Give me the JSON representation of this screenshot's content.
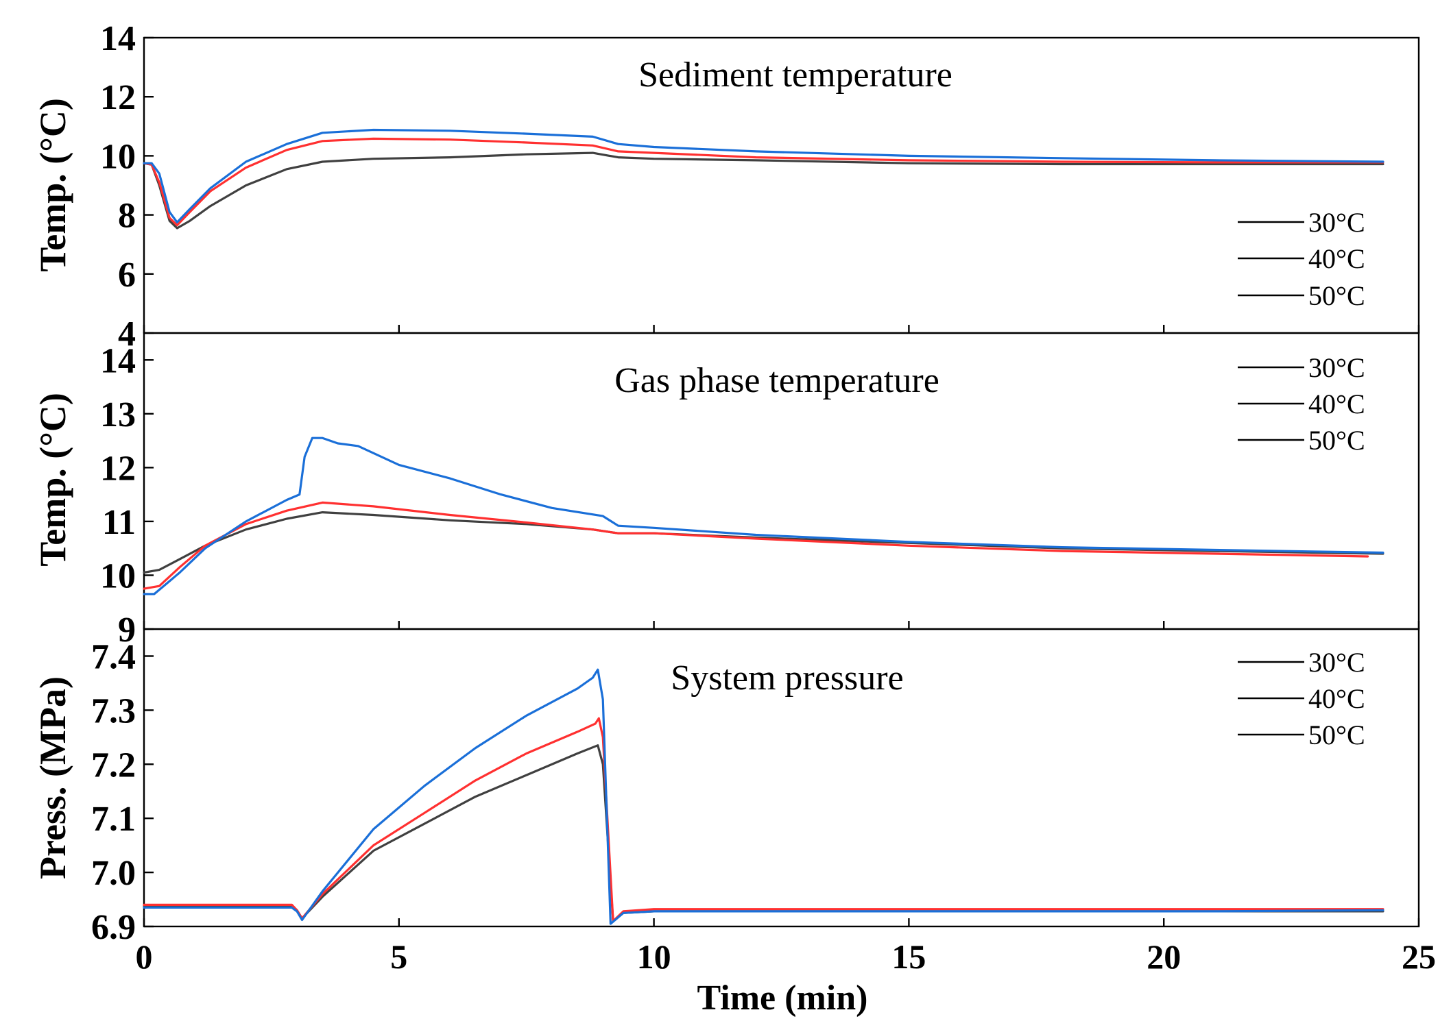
{
  "chart_data": [
    {
      "type": "line",
      "title": "Sediment temperature",
      "xlabel": "",
      "ylabel": "Temp. (°C)",
      "xlim": [
        0,
        25
      ],
      "ylim": [
        4,
        14
      ],
      "yticks": [
        "4",
        "6",
        "8",
        "10",
        "12",
        "14"
      ],
      "legend_position": "bottom-right",
      "series": [
        {
          "name": "30°C",
          "color": "#404040",
          "x": [
            0,
            0.15,
            0.3,
            0.5,
            0.65,
            0.9,
            1.3,
            2.0,
            2.8,
            3.5,
            4.5,
            6.0,
            7.5,
            8.8,
            9.3,
            10,
            12,
            15,
            18,
            21,
            24.3
          ],
          "y": [
            9.75,
            9.7,
            9.0,
            7.8,
            7.55,
            7.8,
            8.3,
            9.0,
            9.55,
            9.8,
            9.9,
            9.95,
            10.05,
            10.1,
            9.95,
            9.9,
            9.85,
            9.75,
            9.72,
            9.72,
            9.72
          ]
        },
        {
          "name": "40°C",
          "color": "#ff3030",
          "x": [
            0,
            0.15,
            0.3,
            0.5,
            0.65,
            0.9,
            1.3,
            2.0,
            2.8,
            3.5,
            4.5,
            6.0,
            7.5,
            8.8,
            9.3,
            10,
            12,
            15,
            18,
            21,
            24.3
          ],
          "y": [
            9.75,
            9.7,
            9.1,
            7.9,
            7.65,
            8.1,
            8.8,
            9.6,
            10.2,
            10.5,
            10.58,
            10.55,
            10.45,
            10.35,
            10.15,
            10.1,
            9.95,
            9.85,
            9.8,
            9.78,
            9.78
          ]
        },
        {
          "name": "50°C",
          "color": "#1a6fd8",
          "x": [
            0,
            0.15,
            0.3,
            0.5,
            0.65,
            0.9,
            1.3,
            2.0,
            2.8,
            3.5,
            4.5,
            6.0,
            7.5,
            8.8,
            9.3,
            10,
            12,
            15,
            18,
            21,
            24.3
          ],
          "y": [
            9.75,
            9.75,
            9.4,
            8.1,
            7.75,
            8.2,
            8.9,
            9.8,
            10.4,
            10.78,
            10.88,
            10.85,
            10.75,
            10.65,
            10.4,
            10.3,
            10.15,
            10.0,
            9.92,
            9.85,
            9.8
          ]
        }
      ]
    },
    {
      "type": "line",
      "title": "Gas phase temperature",
      "xlabel": "",
      "ylabel": "Temp. (°C)",
      "xlim": [
        0,
        25
      ],
      "ylim": [
        9,
        14.5
      ],
      "yticks": [
        "9",
        "10",
        "11",
        "12",
        "13",
        "14"
      ],
      "legend_position": "top-right",
      "series": [
        {
          "name": "30°C",
          "color": "#404040",
          "x": [
            0,
            0.3,
            0.7,
            1.2,
            2.0,
            2.8,
            3.5,
            4.5,
            6.0,
            7.5,
            8.8,
            9.3,
            10,
            12,
            15,
            18,
            21,
            24.3
          ],
          "y": [
            10.05,
            10.1,
            10.3,
            10.55,
            10.85,
            11.05,
            11.17,
            11.12,
            11.02,
            10.95,
            10.85,
            10.78,
            10.78,
            10.7,
            10.6,
            10.5,
            10.45,
            10.4
          ]
        },
        {
          "name": "40°C",
          "color": "#ff3030",
          "x": [
            0,
            0.3,
            0.7,
            1.2,
            2.0,
            2.8,
            3.5,
            4.5,
            6.0,
            7.5,
            8.8,
            9.3,
            10,
            12,
            15,
            18,
            21,
            24
          ],
          "y": [
            9.75,
            9.8,
            10.15,
            10.55,
            10.95,
            11.2,
            11.35,
            11.28,
            11.12,
            10.98,
            10.85,
            10.78,
            10.78,
            10.68,
            10.55,
            10.45,
            10.4,
            10.35
          ]
        },
        {
          "name": "50°C",
          "color": "#1a6fd8",
          "x": [
            0,
            0.2,
            0.7,
            1.2,
            2.0,
            2.8,
            3.05,
            3.15,
            3.3,
            3.5,
            3.8,
            4.2,
            5.0,
            6.0,
            7.0,
            8.0,
            9.0,
            9.3,
            10,
            12,
            15,
            18,
            21,
            24.3
          ],
          "y": [
            9.65,
            9.65,
            10.05,
            10.5,
            11.0,
            11.4,
            11.5,
            12.2,
            12.55,
            12.55,
            12.45,
            12.4,
            12.05,
            11.8,
            11.5,
            11.25,
            11.1,
            10.92,
            10.88,
            10.75,
            10.62,
            10.52,
            10.47,
            10.42
          ]
        }
      ]
    },
    {
      "type": "line",
      "title": "System pressure",
      "xlabel": "Time (min)",
      "ylabel": "Press. (MPa)",
      "xlim": [
        0,
        25
      ],
      "ylim": [
        6.9,
        7.45
      ],
      "yticks": [
        "6.9",
        "7.0",
        "7.1",
        "7.2",
        "7.3",
        "7.4"
      ],
      "xticks": [
        "0",
        "5",
        "10",
        "15",
        "20",
        "25"
      ],
      "legend_position": "top-right",
      "series": [
        {
          "name": "30°C",
          "color": "#404040",
          "x": [
            0,
            1,
            2,
            2.9,
            3.0,
            3.1,
            3.5,
            4.5,
            5.5,
            6.5,
            7.5,
            8.5,
            8.9,
            9.0,
            9.2,
            9.4,
            10,
            12,
            15,
            18,
            21,
            24.3
          ],
          "y": [
            6.938,
            6.938,
            6.938,
            6.938,
            6.93,
            6.915,
            6.955,
            7.04,
            7.09,
            7.14,
            7.18,
            7.22,
            7.235,
            7.2,
            6.91,
            6.925,
            6.928,
            6.928,
            6.928,
            6.928,
            6.928,
            6.928
          ]
        },
        {
          "name": "40°C",
          "color": "#ff3030",
          "x": [
            0,
            1,
            2,
            2.9,
            3.0,
            3.1,
            3.5,
            4.5,
            5.5,
            6.5,
            7.5,
            8.5,
            8.85,
            8.92,
            9.0,
            9.2,
            9.4,
            10,
            12,
            15,
            18,
            21,
            24.3
          ],
          "y": [
            6.94,
            6.94,
            6.94,
            6.94,
            6.93,
            6.915,
            6.96,
            7.05,
            7.11,
            7.17,
            7.22,
            7.26,
            7.275,
            7.285,
            7.25,
            6.91,
            6.928,
            6.932,
            6.932,
            6.932,
            6.932,
            6.932,
            6.932
          ]
        },
        {
          "name": "50°C",
          "color": "#1a6fd8",
          "x": [
            0,
            1,
            2,
            2.9,
            3.0,
            3.1,
            3.5,
            4.5,
            5.5,
            6.5,
            7.5,
            8.5,
            8.8,
            8.9,
            9.0,
            9.15,
            9.4,
            10,
            12,
            15,
            18,
            21,
            24.3
          ],
          "y": [
            6.935,
            6.935,
            6.935,
            6.935,
            6.928,
            6.912,
            6.965,
            7.08,
            7.16,
            7.23,
            7.29,
            7.34,
            7.36,
            7.375,
            7.32,
            6.905,
            6.925,
            6.928,
            6.928,
            6.928,
            6.928,
            6.928,
            6.93
          ]
        }
      ]
    }
  ]
}
